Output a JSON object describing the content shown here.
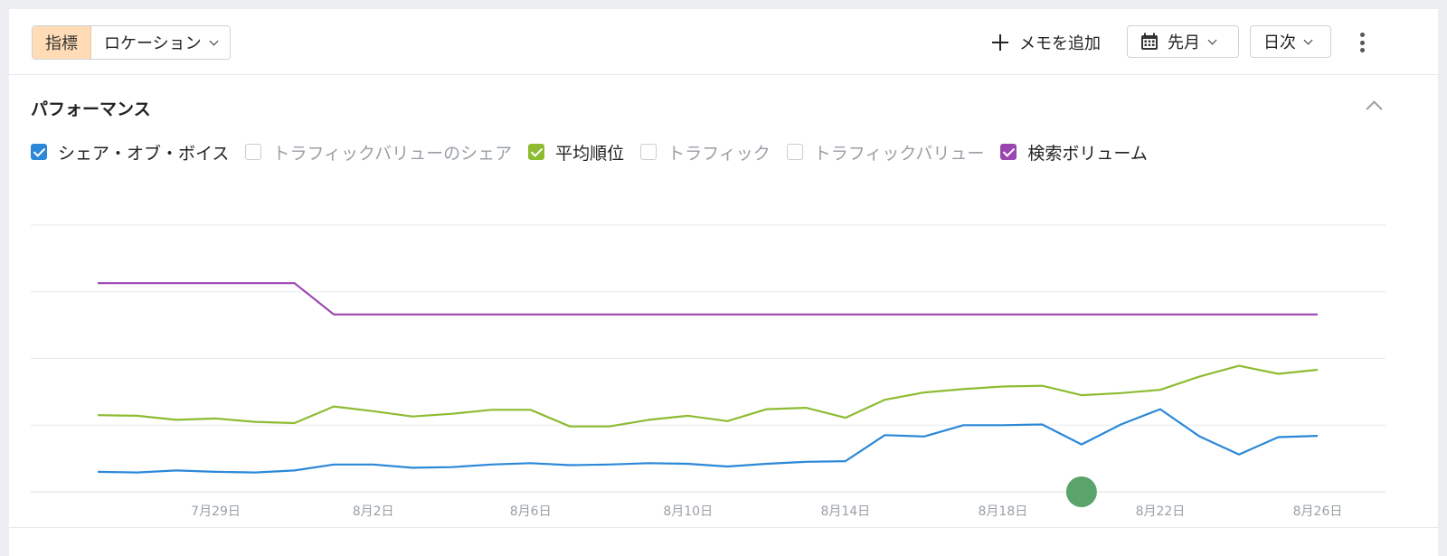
{
  "toolbar": {
    "metric_tag": "指標",
    "location_label": "ロケーション",
    "add_memo_label": "メモを追加",
    "period_label": "先月",
    "granularity_label": "日次"
  },
  "section": {
    "title": "パフォーマンス"
  },
  "legend": [
    {
      "label": "シェア・オブ・ボイス",
      "checked": true,
      "color": "#2b88d8"
    },
    {
      "label": "トラフィックバリューのシェア",
      "checked": false,
      "color": "#c9cdd2"
    },
    {
      "label": "平均順位",
      "checked": true,
      "color": "#8ebc31"
    },
    {
      "label": "トラフィック",
      "checked": false,
      "color": "#c9cdd2"
    },
    {
      "label": "トラフィックバリュー",
      "checked": false,
      "color": "#c9cdd2"
    },
    {
      "label": "検索ボリューム",
      "checked": true,
      "color": "#9b45b0"
    }
  ],
  "chart_data": {
    "type": "line",
    "x": [
      "7月26日",
      "7月27日",
      "7月28日",
      "7月29日",
      "7月30日",
      "7月31日",
      "8月1日",
      "8月2日",
      "8月3日",
      "8月4日",
      "8月5日",
      "8月6日",
      "8月7日",
      "8月8日",
      "8月9日",
      "8月10日",
      "8月11日",
      "8月12日",
      "8月13日",
      "8月14日",
      "8月15日",
      "8月16日",
      "8月17日",
      "8月18日",
      "8月19日",
      "8月20日",
      "8月21日",
      "8月22日",
      "8月23日",
      "8月24日",
      "8月25日",
      "8月26日"
    ],
    "x_ticks": [
      "7月29日",
      "8月2日",
      "8月6日",
      "8月10日",
      "8月14日",
      "8月18日",
      "8月22日",
      "8月26日"
    ],
    "ylim": [
      0,
      4
    ],
    "grid": true,
    "series": [
      {
        "color": "#9b45b0",
        "values": [
          3.13,
          3.13,
          3.13,
          3.13,
          3.13,
          3.13,
          2.66,
          2.66,
          2.66,
          2.66,
          2.66,
          2.66,
          2.66,
          2.66,
          2.66,
          2.66,
          2.66,
          2.66,
          2.66,
          2.66,
          2.66,
          2.66,
          2.66,
          2.66,
          2.66,
          2.66,
          2.66,
          2.66,
          2.66,
          2.66,
          2.66,
          2.66
        ]
      },
      {
        "color": "#8ebc31",
        "values": [
          1.15,
          1.14,
          1.08,
          1.1,
          1.05,
          1.03,
          1.28,
          1.21,
          1.13,
          1.17,
          1.23,
          1.23,
          0.98,
          0.98,
          1.08,
          1.14,
          1.06,
          1.24,
          1.26,
          1.11,
          1.38,
          1.49,
          1.54,
          1.58,
          1.59,
          1.45,
          1.48,
          1.53,
          1.73,
          1.89,
          1.77,
          1.83
        ]
      },
      {
        "color": "#2b88d8",
        "values": [
          0.3,
          0.29,
          0.32,
          0.3,
          0.29,
          0.32,
          0.41,
          0.41,
          0.36,
          0.37,
          0.41,
          0.43,
          0.4,
          0.41,
          0.43,
          0.42,
          0.38,
          0.42,
          0.45,
          0.46,
          0.85,
          0.83,
          1.0,
          1.0,
          1.01,
          0.71,
          1.01,
          1.24,
          0.83,
          0.56,
          0.82,
          0.84
        ]
      }
    ]
  },
  "colors": {
    "accent_blue": "#2b88d8",
    "accent_green": "#8ebc31",
    "accent_purple": "#9b45b0",
    "tag_bg": "#ffdcb5",
    "marker": "#5aa36b"
  },
  "marker": {
    "x_index": 25
  }
}
